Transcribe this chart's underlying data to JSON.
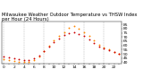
{
  "title": "Milwaukee Weather Outdoor Temperature vs THSW Index per Hour (24 Hours)",
  "hours": [
    0,
    1,
    2,
    3,
    4,
    5,
    6,
    7,
    8,
    9,
    10,
    11,
    12,
    13,
    14,
    15,
    16,
    17,
    18,
    19,
    20,
    21,
    22,
    23
  ],
  "temp": [
    47,
    46,
    45,
    44,
    43,
    43,
    45,
    48,
    53,
    59,
    64,
    68,
    72,
    75,
    76,
    74,
    71,
    67,
    63,
    59,
    56,
    54,
    52,
    50
  ],
  "thsw": [
    44,
    43,
    42,
    41,
    40,
    40,
    43,
    47,
    53,
    60,
    66,
    71,
    76,
    81,
    83,
    80,
    76,
    71,
    66,
    61,
    57,
    55,
    52,
    50
  ],
  "temp_color": "#cc0000",
  "thsw_color": "#ff8800",
  "grid_color": "#888888",
  "bg_color": "#ffffff",
  "ylim": [
    38,
    88
  ],
  "ytick_values": [
    40,
    45,
    50,
    55,
    60,
    65,
    70,
    75,
    80,
    85
  ],
  "title_fontsize": 3.8,
  "tick_fontsize": 3.2,
  "marker_size": 1.8,
  "dashed_vgrid_hours": [
    0,
    4,
    8,
    12,
    16,
    20
  ]
}
